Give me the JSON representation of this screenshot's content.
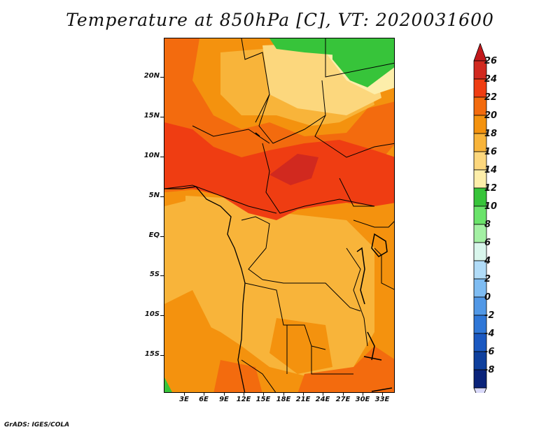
{
  "title": "Temperature at 850hPa [C], VT: 2020031600",
  "credit": "GrADS: IGES/COLA",
  "lat_labels": [
    "20N",
    "15N",
    "10N",
    "5N",
    "EQ",
    "5S",
    "10S",
    "15S"
  ],
  "lon_labels": [
    "3E",
    "6E",
    "9E",
    "12E",
    "15E",
    "18E",
    "21E",
    "24E",
    "27E",
    "30E",
    "33E"
  ],
  "colorbar": {
    "labels": [
      "26",
      "24",
      "22",
      "20",
      "18",
      "16",
      "14",
      "12",
      "10",
      "8",
      "6",
      "4",
      "2",
      "0",
      "-2",
      "-4",
      "-6",
      "-8"
    ],
    "colors": [
      "#d1291f",
      "#ef3d12",
      "#f36b0e",
      "#f4920e",
      "#f8b43a",
      "#fcd77d",
      "#fdeeaa",
      "#37c43a",
      "#6ae36a",
      "#a3f0a3",
      "#d9f6ec",
      "#b1dcf8",
      "#7ebcf2",
      "#5198e6",
      "#2f77d7",
      "#1a58c1",
      "#0e3f9d",
      "#0a237a"
    ],
    "arrow_top_color": "#c2191c",
    "arrow_bottom_color": "#d9d9f9"
  },
  "map_colors": {
    "t26": "#d1291f",
    "t24": "#ef3d12",
    "t22": "#f36b0e",
    "t20": "#f4920e",
    "t18": "#f8b43a",
    "t16": "#fcd77d",
    "t14": "#fdeeaa",
    "t12": "#37c43a"
  }
}
